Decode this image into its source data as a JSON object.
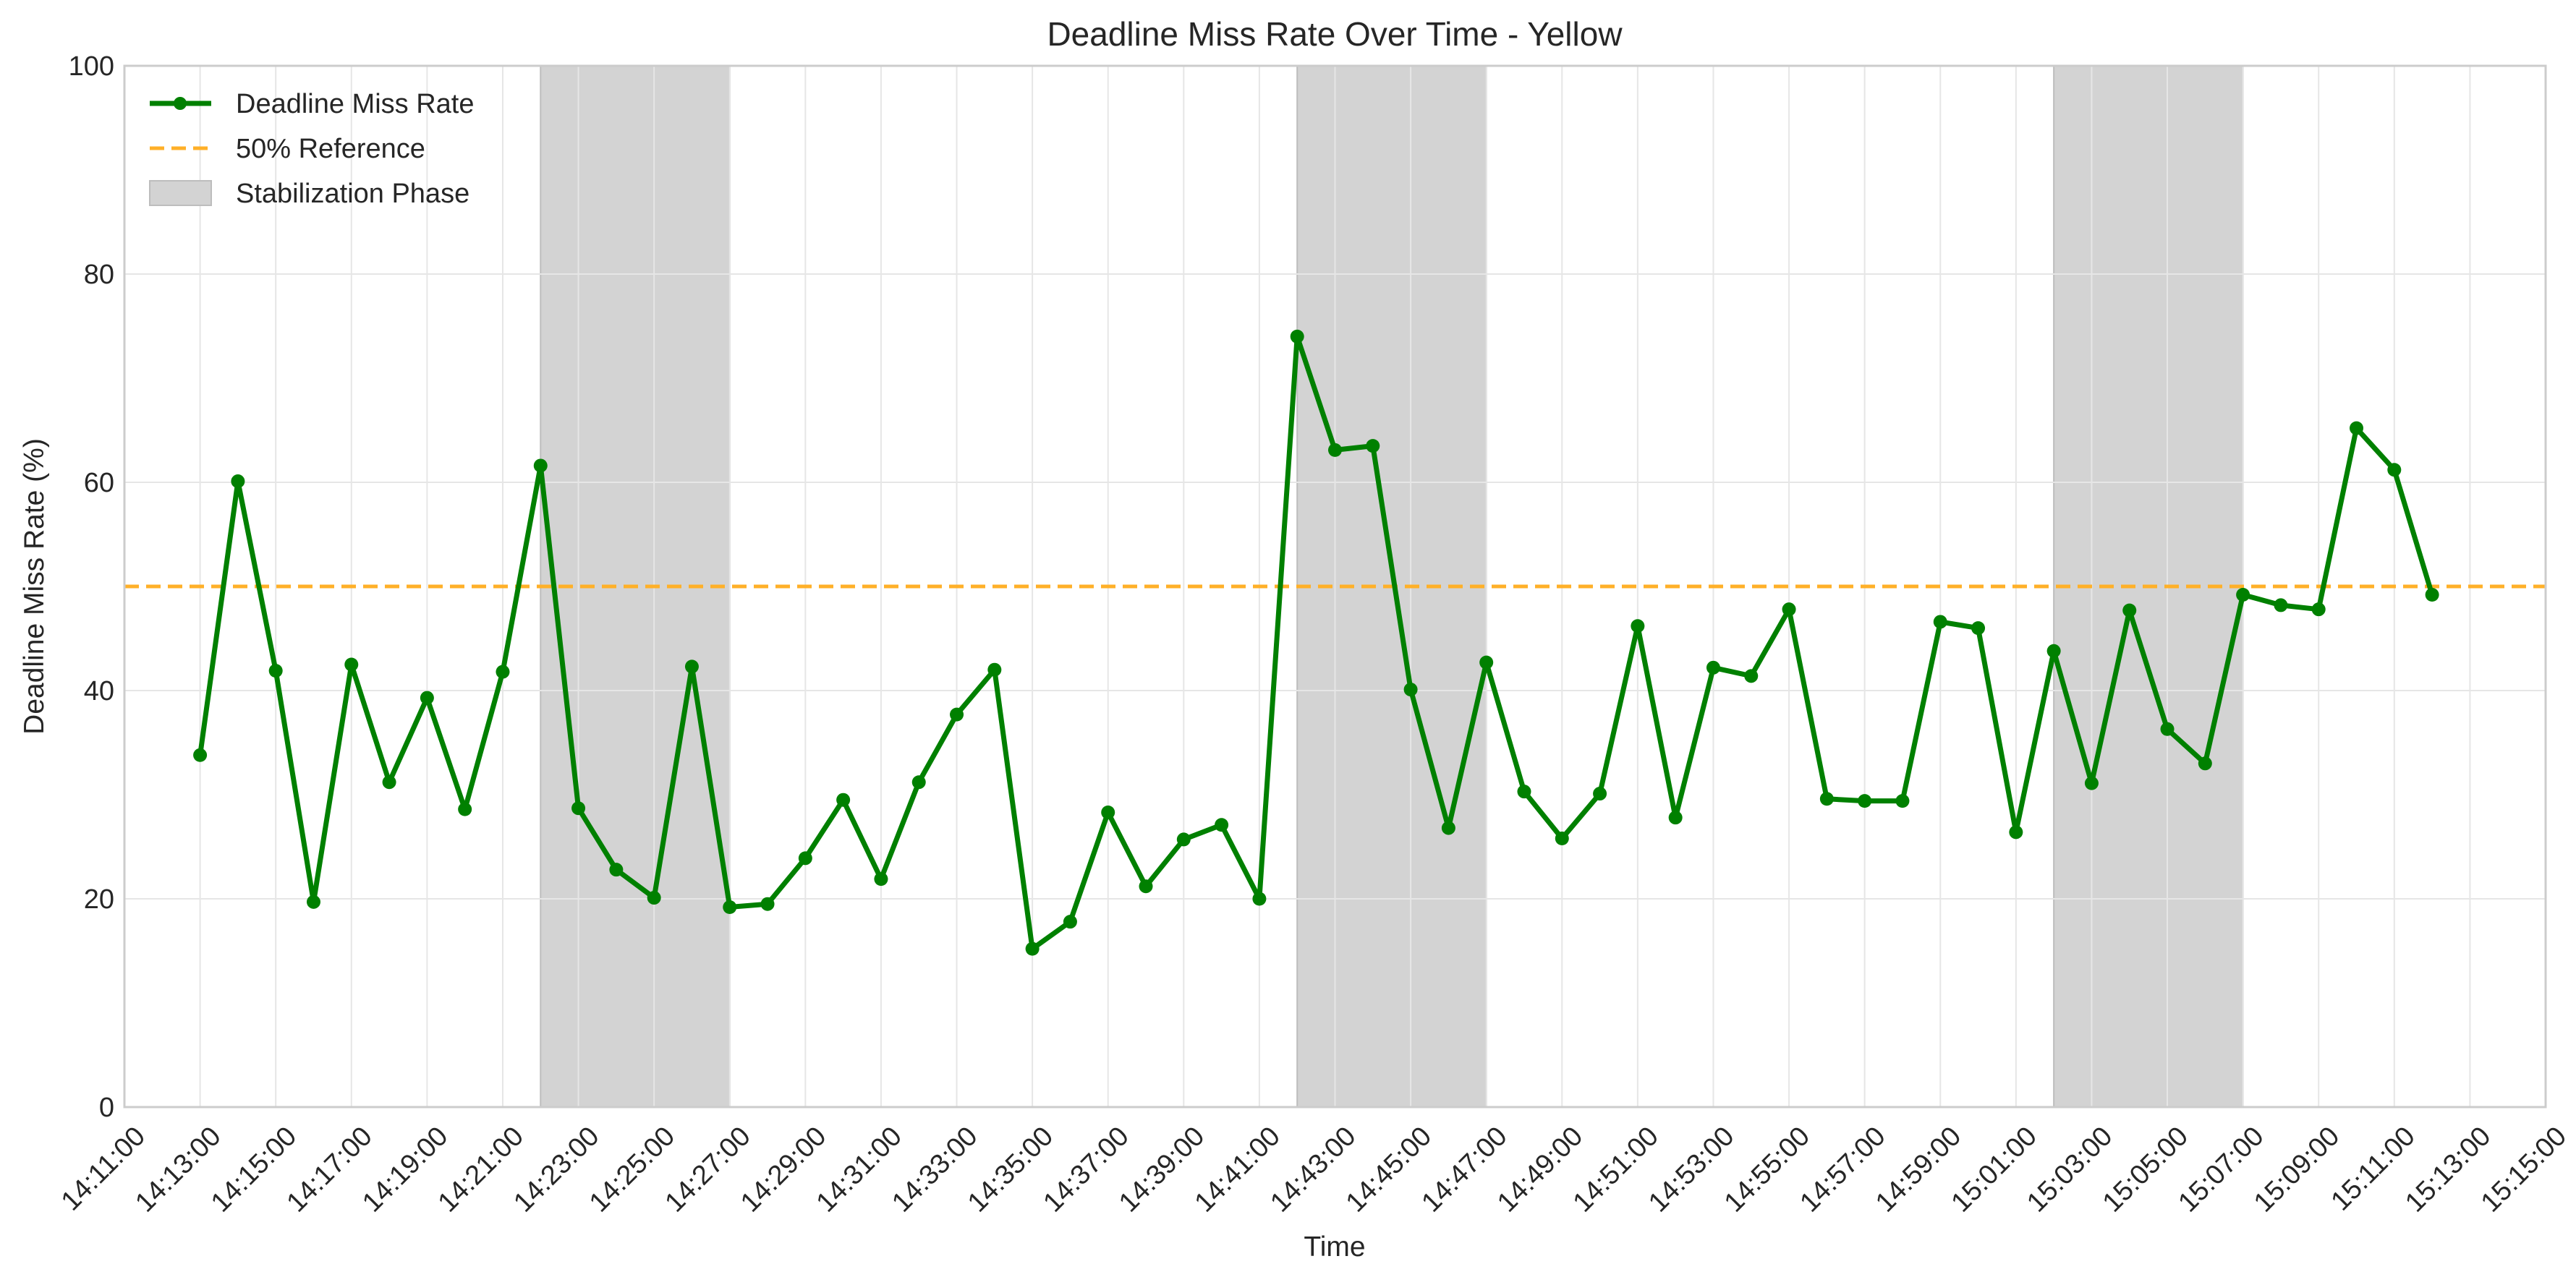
{
  "chart_data": {
    "type": "line",
    "title": "Deadline Miss Rate Over Time - Yellow",
    "xlabel": "Time",
    "ylabel": "Deadline Miss Rate (%)",
    "ylim": [
      0,
      100
    ],
    "xlim": [
      "14:11:00",
      "15:15:00"
    ],
    "grid": true,
    "legend_position": "top-left",
    "yticks": [
      0,
      20,
      40,
      60,
      80,
      100
    ],
    "xticks": [
      "14:11:00",
      "14:13:00",
      "14:15:00",
      "14:17:00",
      "14:19:00",
      "14:21:00",
      "14:23:00",
      "14:25:00",
      "14:27:00",
      "14:29:00",
      "14:31:00",
      "14:33:00",
      "14:35:00",
      "14:37:00",
      "14:39:00",
      "14:41:00",
      "14:43:00",
      "14:45:00",
      "14:47:00",
      "14:49:00",
      "14:51:00",
      "14:53:00",
      "14:55:00",
      "14:57:00",
      "14:59:00",
      "15:01:00",
      "15:03:00",
      "15:05:00",
      "15:07:00",
      "15:09:00",
      "15:11:00",
      "15:13:00",
      "15:15:00"
    ],
    "series": [
      {
        "name": "Deadline Miss Rate",
        "color": "#008000",
        "x": [
          "14:13:00",
          "14:14:00",
          "14:15:00",
          "14:16:00",
          "14:17:00",
          "14:18:00",
          "14:19:00",
          "14:20:00",
          "14:21:00",
          "14:22:00",
          "14:23:00",
          "14:24:00",
          "14:25:00",
          "14:26:00",
          "14:27:00",
          "14:28:00",
          "14:29:00",
          "14:30:00",
          "14:31:00",
          "14:32:00",
          "14:33:00",
          "14:34:00",
          "14:35:00",
          "14:36:00",
          "14:37:00",
          "14:38:00",
          "14:39:00",
          "14:40:00",
          "14:41:00",
          "14:42:00",
          "14:43:00",
          "14:44:00",
          "14:45:00",
          "14:46:00",
          "14:47:00",
          "14:48:00",
          "14:49:00",
          "14:50:00",
          "14:51:00",
          "14:52:00",
          "14:53:00",
          "14:54:00",
          "14:55:00",
          "14:56:00",
          "14:57:00",
          "14:58:00",
          "14:59:00",
          "15:00:00",
          "15:01:00",
          "15:02:00",
          "15:03:00",
          "15:04:00",
          "15:05:00",
          "15:06:00",
          "15:07:00",
          "15:08:00",
          "15:09:00",
          "15:10:00",
          "15:11:00",
          "15:12:00"
        ],
        "values": [
          33.8,
          60.1,
          41.9,
          19.7,
          42.5,
          31.2,
          39.3,
          28.6,
          41.8,
          61.6,
          28.7,
          22.8,
          20.1,
          42.3,
          19.2,
          19.5,
          23.9,
          29.5,
          21.9,
          31.2,
          37.7,
          42.0,
          15.2,
          17.8,
          28.3,
          21.2,
          25.7,
          27.1,
          20.0,
          74.0,
          63.1,
          63.5,
          40.1,
          26.8,
          42.7,
          30.3,
          25.8,
          30.1,
          46.2,
          27.8,
          42.2,
          41.4,
          47.8,
          29.6,
          29.4,
          29.4,
          46.6,
          46.0,
          26.4,
          43.8,
          31.1,
          47.7,
          36.3,
          33.0,
          49.2,
          48.2,
          47.8,
          65.2,
          61.2,
          49.2
        ]
      },
      {
        "name": "50% Reference",
        "color": "#ffb028",
        "value": 50
      }
    ],
    "shaded_regions": {
      "name": "Stabilization Phase",
      "color": "#d3d3d3",
      "ranges": [
        [
          "14:22:00",
          "14:27:00"
        ],
        [
          "14:42:00",
          "14:47:00"
        ],
        [
          "15:02:00",
          "15:07:00"
        ]
      ]
    }
  }
}
